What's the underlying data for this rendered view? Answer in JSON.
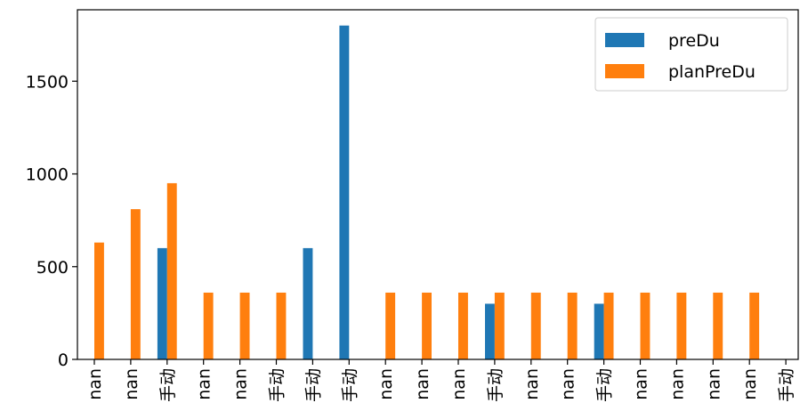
{
  "chart_data": {
    "type": "bar",
    "categories": [
      "nan",
      "nan",
      "手动",
      "nan",
      "nan",
      "手动",
      "手动",
      "手动",
      "nan",
      "nan",
      "nan",
      "手动",
      "nan",
      "nan",
      "手动",
      "nan",
      "nan",
      "nan",
      "nan",
      "手动"
    ],
    "series": [
      {
        "name": "preDu",
        "color": "#1f77b4",
        "values": [
          0,
          0,
          600,
          0,
          0,
          0,
          600,
          1800,
          0,
          0,
          0,
          300,
          0,
          0,
          300,
          0,
          0,
          0,
          0,
          0
        ]
      },
      {
        "name": "planPreDu",
        "color": "#ff7f0e",
        "values": [
          630,
          810,
          950,
          360,
          360,
          360,
          0,
          0,
          360,
          360,
          360,
          360,
          360,
          360,
          360,
          360,
          360,
          360,
          360,
          0
        ]
      }
    ],
    "y_ticks": [
      0,
      500,
      1000,
      1500
    ],
    "ylim": [
      0,
      1885
    ],
    "legend_position": "top-right",
    "grid": false
  }
}
